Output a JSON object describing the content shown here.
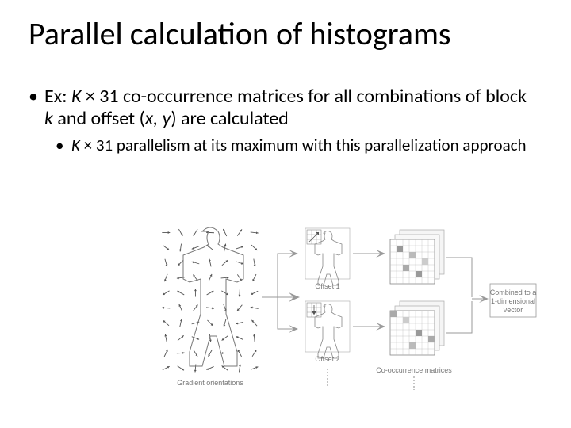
{
  "title": "Parallel calculation of histograms",
  "bullet1_a": "Ex: ",
  "bullet1_K": "K",
  "bullet1_b": " × 31 co-occurrence matrices for all combinations of block ",
  "bullet1_k": "k",
  "bullet1_c": " and offset (",
  "bullet1_x": "x, y",
  "bullet1_d": ") are calculated",
  "bullet2_K": "K",
  "bullet2_a": " × 31 parallelism at its maximum with this parallelization approach",
  "fig": {
    "gradient_label": "Gradient orientations",
    "offset1_label": "Offset 1",
    "offset2_label": "Offset 2",
    "cooc_label": "Co-occurrence matrices",
    "combined_label_l1": "Combined to a",
    "combined_label_l2": "1-dimensional",
    "combined_label_l3": "vector",
    "body_grid_cols": 7,
    "body_grid_rows": 10,
    "colors": {
      "line": "#888888",
      "body_outline": "#777777",
      "arrow": "#555555",
      "flow_arrow": "#999999",
      "matrix_fill": "#f5f5f5",
      "matrix_stroke": "#aaaaaa",
      "output_box_stroke": "#999999",
      "text": "#777777"
    }
  }
}
